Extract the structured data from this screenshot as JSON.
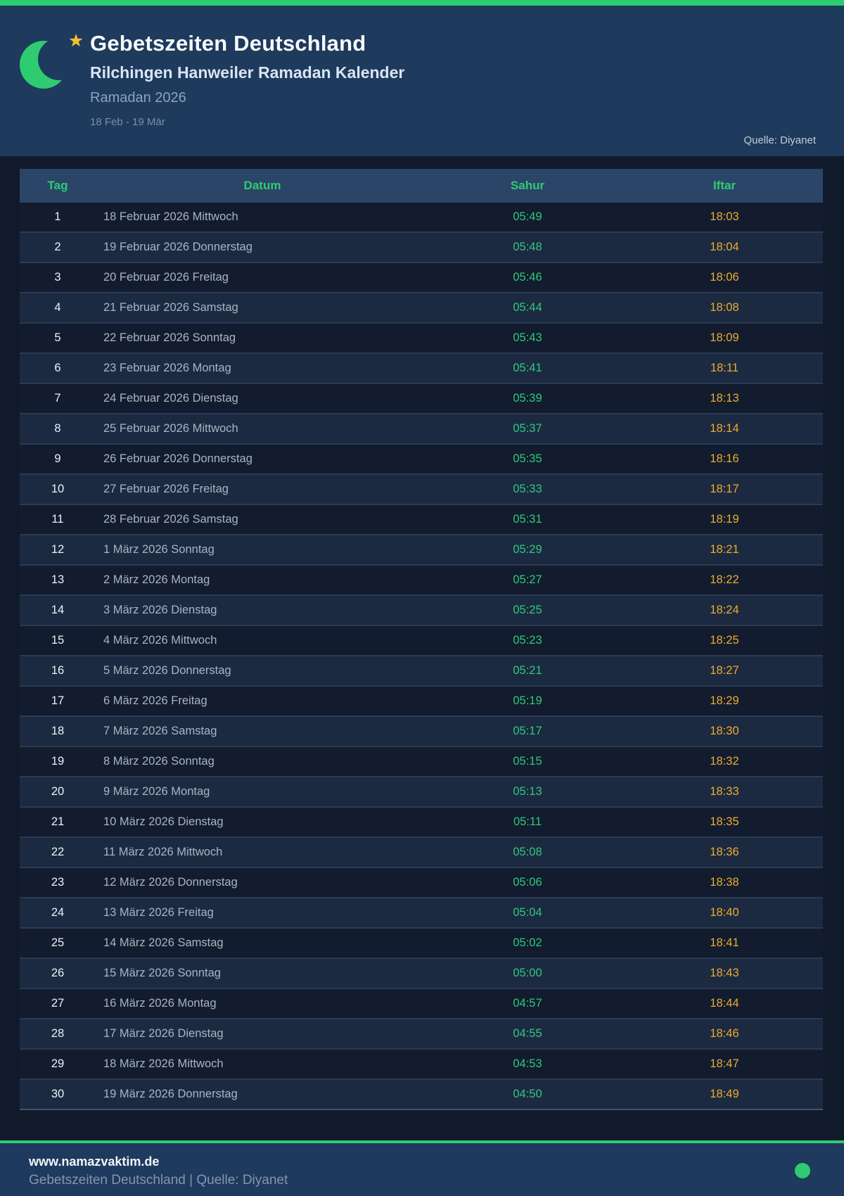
{
  "header": {
    "title": "Gebetszeiten Deutschland",
    "subtitle": "Rilchingen Hanweiler Ramadan Kalender",
    "season": "Ramadan 2026",
    "date_range": "18 Feb - 19 Mär",
    "source": "Quelle: Diyanet",
    "icon": "crescent-moon-and-star-icon"
  },
  "colors": {
    "accent_green": "#2ecc71",
    "iftar_amber": "#eeab2e",
    "header_bg": "#1e3a5c",
    "page_bg": "#101a2b",
    "row_odd": "#121c2e",
    "row_even": "#1c2a41",
    "star_gold": "#f2c12e"
  },
  "table": {
    "columns": [
      "Tag",
      "Datum",
      "Sahur",
      "Iftar"
    ],
    "rows": [
      [
        "1",
        "18 Februar 2026 Mittwoch",
        "05:49",
        "18:03"
      ],
      [
        "2",
        "19 Februar 2026 Donnerstag",
        "05:48",
        "18:04"
      ],
      [
        "3",
        "20 Februar 2026 Freitag",
        "05:46",
        "18:06"
      ],
      [
        "4",
        "21 Februar 2026 Samstag",
        "05:44",
        "18:08"
      ],
      [
        "5",
        "22 Februar 2026 Sonntag",
        "05:43",
        "18:09"
      ],
      [
        "6",
        "23 Februar 2026 Montag",
        "05:41",
        "18:11"
      ],
      [
        "7",
        "24 Februar 2026 Dienstag",
        "05:39",
        "18:13"
      ],
      [
        "8",
        "25 Februar 2026 Mittwoch",
        "05:37",
        "18:14"
      ],
      [
        "9",
        "26 Februar 2026 Donnerstag",
        "05:35",
        "18:16"
      ],
      [
        "10",
        "27 Februar 2026 Freitag",
        "05:33",
        "18:17"
      ],
      [
        "11",
        "28 Februar 2026 Samstag",
        "05:31",
        "18:19"
      ],
      [
        "12",
        "1 März 2026 Sonntag",
        "05:29",
        "18:21"
      ],
      [
        "13",
        "2 März 2026 Montag",
        "05:27",
        "18:22"
      ],
      [
        "14",
        "3 März 2026 Dienstag",
        "05:25",
        "18:24"
      ],
      [
        "15",
        "4 März 2026 Mittwoch",
        "05:23",
        "18:25"
      ],
      [
        "16",
        "5 März 2026 Donnerstag",
        "05:21",
        "18:27"
      ],
      [
        "17",
        "6 März 2026 Freitag",
        "05:19",
        "18:29"
      ],
      [
        "18",
        "7 März 2026 Samstag",
        "05:17",
        "18:30"
      ],
      [
        "19",
        "8 März 2026 Sonntag",
        "05:15",
        "18:32"
      ],
      [
        "20",
        "9 März 2026 Montag",
        "05:13",
        "18:33"
      ],
      [
        "21",
        "10 März 2026 Dienstag",
        "05:11",
        "18:35"
      ],
      [
        "22",
        "11 März 2026 Mittwoch",
        "05:08",
        "18:36"
      ],
      [
        "23",
        "12 März 2026 Donnerstag",
        "05:06",
        "18:38"
      ],
      [
        "24",
        "13 März 2026 Freitag",
        "05:04",
        "18:40"
      ],
      [
        "25",
        "14 März 2026 Samstag",
        "05:02",
        "18:41"
      ],
      [
        "26",
        "15 März 2026 Sonntag",
        "05:00",
        "18:43"
      ],
      [
        "27",
        "16 März 2026 Montag",
        "04:57",
        "18:44"
      ],
      [
        "28",
        "17 März 2026 Dienstag",
        "04:55",
        "18:46"
      ],
      [
        "29",
        "18 März 2026 Mittwoch",
        "04:53",
        "18:47"
      ],
      [
        "30",
        "19 März 2026 Donnerstag",
        "04:50",
        "18:49"
      ]
    ]
  },
  "footer": {
    "website": "www.namazvaktim.de",
    "tagline": "Gebetszeiten Deutschland | Quelle: Diyanet",
    "status_dot": "green"
  }
}
